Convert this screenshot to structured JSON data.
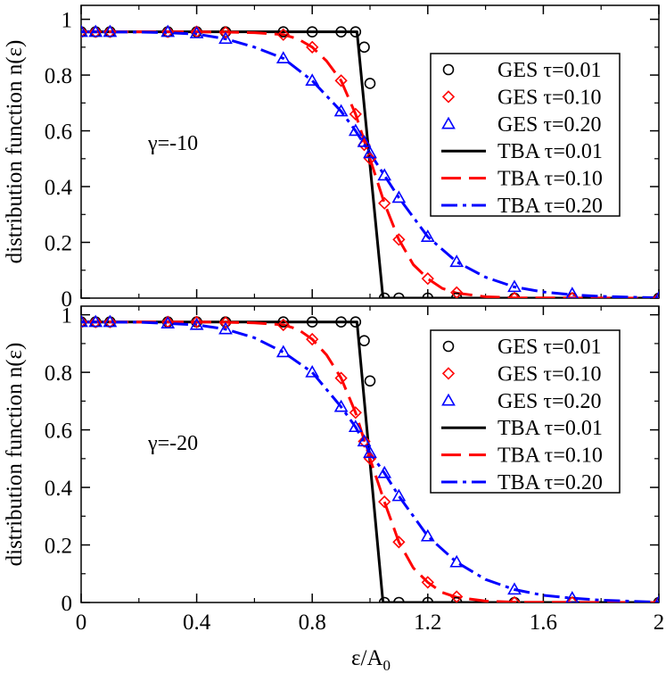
{
  "chart_data": [
    {
      "type": "line",
      "panel": "top",
      "annotation": "γ=-10",
      "ylabel": "distribution function n(ε)",
      "xlabel": "",
      "xlim": [
        0,
        2
      ],
      "ylim": [
        0,
        1.05
      ],
      "x_ticks": [
        0,
        0.4,
        0.8,
        1.2,
        1.6,
        2
      ],
      "y_ticks": [
        0,
        0.2,
        0.4,
        0.6,
        0.8,
        1
      ],
      "y_tick_labels": [
        "0",
        "0.2",
        "0.4",
        "0.6",
        "0.8",
        "1"
      ],
      "legend_position": "top-right",
      "series": [
        {
          "name": "GES τ=0.01",
          "kind": "markers",
          "marker": "circle",
          "color": "#000000",
          "x": [
            0,
            0.05,
            0.1,
            0.3,
            0.4,
            0.5,
            0.7,
            0.8,
            0.9,
            0.95,
            0.98,
            1.0,
            1.05,
            1.1,
            1.2,
            1.3,
            1.5,
            1.7,
            2.0
          ],
          "y": [
            0.955,
            0.955,
            0.955,
            0.955,
            0.955,
            0.955,
            0.955,
            0.955,
            0.955,
            0.955,
            0.9,
            0.77,
            0.0,
            0.0,
            0.0,
            0.0,
            0.0,
            0.0,
            0.0
          ]
        },
        {
          "name": "GES τ=0.10",
          "kind": "markers",
          "marker": "diamond",
          "color": "#ff0000",
          "x": [
            0,
            0.05,
            0.1,
            0.3,
            0.4,
            0.5,
            0.7,
            0.8,
            0.9,
            0.95,
            0.98,
            1.0,
            1.05,
            1.1,
            1.2,
            1.3,
            1.5,
            1.7,
            2.0
          ],
          "y": [
            0.955,
            0.955,
            0.955,
            0.955,
            0.955,
            0.953,
            0.945,
            0.9,
            0.78,
            0.66,
            0.55,
            0.5,
            0.34,
            0.21,
            0.07,
            0.02,
            0.0,
            0.0,
            0.0
          ]
        },
        {
          "name": "GES τ=0.20",
          "kind": "markers",
          "marker": "triangle",
          "color": "#0000ff",
          "x": [
            0,
            0.05,
            0.1,
            0.3,
            0.4,
            0.5,
            0.7,
            0.8,
            0.9,
            0.95,
            0.98,
            1.0,
            1.05,
            1.1,
            1.2,
            1.3,
            1.5,
            1.7,
            2.0
          ],
          "y": [
            0.955,
            0.955,
            0.955,
            0.955,
            0.95,
            0.93,
            0.86,
            0.78,
            0.67,
            0.6,
            0.56,
            0.52,
            0.44,
            0.36,
            0.22,
            0.13,
            0.04,
            0.015,
            0.0
          ]
        },
        {
          "name": "TBA τ=0.01",
          "kind": "line",
          "dash": "solid",
          "color": "#000000",
          "x": [
            0,
            0.955,
            1.045,
            2.0
          ],
          "y": [
            0.955,
            0.955,
            0.0,
            0.0
          ]
        },
        {
          "name": "TBA τ=0.10",
          "kind": "line",
          "dash": "dashed",
          "color": "#ff0000",
          "x": [
            0,
            0.4,
            0.5,
            0.6,
            0.7,
            0.75,
            0.8,
            0.85,
            0.9,
            0.95,
            1.0,
            1.05,
            1.1,
            1.15,
            1.2,
            1.25,
            1.3,
            1.4,
            1.5,
            2.0
          ],
          "y": [
            0.955,
            0.955,
            0.954,
            0.952,
            0.945,
            0.93,
            0.9,
            0.85,
            0.78,
            0.66,
            0.5,
            0.34,
            0.21,
            0.12,
            0.07,
            0.035,
            0.018,
            0.005,
            0.001,
            0.0
          ]
        },
        {
          "name": "TBA τ=0.20",
          "kind": "line",
          "dash": "dashdot",
          "color": "#0000ff",
          "x": [
            0,
            0.2,
            0.3,
            0.4,
            0.5,
            0.6,
            0.7,
            0.8,
            0.9,
            0.95,
            1.0,
            1.05,
            1.1,
            1.2,
            1.3,
            1.4,
            1.5,
            1.6,
            1.7,
            1.8,
            2.0
          ],
          "y": [
            0.955,
            0.954,
            0.952,
            0.947,
            0.93,
            0.9,
            0.86,
            0.78,
            0.67,
            0.6,
            0.52,
            0.44,
            0.36,
            0.22,
            0.13,
            0.075,
            0.04,
            0.022,
            0.012,
            0.006,
            0.001
          ]
        }
      ]
    },
    {
      "type": "line",
      "panel": "bottom",
      "annotation": "γ=-20",
      "ylabel": "distribution function n(ε)",
      "xlabel": "ε/A0",
      "xlim": [
        0,
        2
      ],
      "ylim": [
        0,
        1.03
      ],
      "x_ticks": [
        0,
        0.4,
        0.8,
        1.2,
        1.6,
        2
      ],
      "x_tick_labels": [
        "0",
        "0.4",
        "0.8",
        "1.2",
        "1.6",
        "2"
      ],
      "y_ticks": [
        0,
        0.2,
        0.4,
        0.6,
        0.8,
        1
      ],
      "y_tick_labels": [
        "0",
        "0.2",
        "0.4",
        "0.6",
        "0.8",
        "1"
      ],
      "legend_position": "top-right",
      "series": [
        {
          "name": "GES τ=0.01",
          "kind": "markers",
          "marker": "circle",
          "color": "#000000",
          "x": [
            0,
            0.05,
            0.1,
            0.3,
            0.4,
            0.5,
            0.7,
            0.8,
            0.9,
            0.95,
            0.98,
            1.0,
            1.05,
            1.1,
            1.2,
            1.3,
            1.5,
            1.7,
            2.0
          ],
          "y": [
            0.975,
            0.975,
            0.975,
            0.975,
            0.975,
            0.975,
            0.975,
            0.975,
            0.975,
            0.975,
            0.91,
            0.77,
            0.0,
            0.0,
            0.0,
            0.0,
            0.0,
            0.0,
            0.0
          ]
        },
        {
          "name": "GES τ=0.10",
          "kind": "markers",
          "marker": "diamond",
          "color": "#ff0000",
          "x": [
            0,
            0.05,
            0.1,
            0.3,
            0.4,
            0.5,
            0.7,
            0.8,
            0.9,
            0.95,
            0.98,
            1.0,
            1.05,
            1.1,
            1.2,
            1.3,
            1.5,
            1.7,
            2.0
          ],
          "y": [
            0.975,
            0.975,
            0.975,
            0.975,
            0.975,
            0.973,
            0.965,
            0.915,
            0.78,
            0.66,
            0.56,
            0.5,
            0.35,
            0.21,
            0.07,
            0.02,
            0.0,
            0.0,
            0.0
          ]
        },
        {
          "name": "GES τ=0.20",
          "kind": "markers",
          "marker": "triangle",
          "color": "#0000ff",
          "x": [
            0,
            0.05,
            0.1,
            0.3,
            0.4,
            0.5,
            0.7,
            0.8,
            0.9,
            0.95,
            0.98,
            1.0,
            1.05,
            1.1,
            1.2,
            1.3,
            1.5,
            1.7,
            2.0
          ],
          "y": [
            0.975,
            0.975,
            0.975,
            0.97,
            0.965,
            0.95,
            0.87,
            0.8,
            0.68,
            0.61,
            0.56,
            0.52,
            0.45,
            0.37,
            0.23,
            0.14,
            0.045,
            0.015,
            0.0
          ]
        },
        {
          "name": "TBA τ=0.01",
          "kind": "line",
          "dash": "solid",
          "color": "#000000",
          "x": [
            0,
            0.955,
            1.045,
            2.0
          ],
          "y": [
            0.975,
            0.975,
            0.0,
            0.0
          ]
        },
        {
          "name": "TBA τ=0.10",
          "kind": "line",
          "dash": "dashed",
          "color": "#ff0000",
          "x": [
            0,
            0.4,
            0.5,
            0.6,
            0.7,
            0.75,
            0.8,
            0.85,
            0.9,
            0.95,
            1.0,
            1.05,
            1.1,
            1.15,
            1.2,
            1.25,
            1.3,
            1.4,
            1.5,
            2.0
          ],
          "y": [
            0.975,
            0.975,
            0.974,
            0.972,
            0.965,
            0.95,
            0.915,
            0.86,
            0.78,
            0.66,
            0.5,
            0.35,
            0.21,
            0.12,
            0.07,
            0.035,
            0.018,
            0.005,
            0.001,
            0.0
          ]
        },
        {
          "name": "TBA τ=0.20",
          "kind": "line",
          "dash": "dashdot",
          "color": "#0000ff",
          "x": [
            0,
            0.2,
            0.3,
            0.4,
            0.5,
            0.6,
            0.7,
            0.8,
            0.9,
            0.95,
            1.0,
            1.05,
            1.1,
            1.2,
            1.3,
            1.4,
            1.5,
            1.6,
            1.7,
            1.8,
            2.0
          ],
          "y": [
            0.975,
            0.974,
            0.97,
            0.965,
            0.95,
            0.92,
            0.87,
            0.8,
            0.68,
            0.61,
            0.52,
            0.45,
            0.37,
            0.23,
            0.14,
            0.08,
            0.045,
            0.025,
            0.015,
            0.008,
            0.001
          ]
        }
      ]
    }
  ]
}
